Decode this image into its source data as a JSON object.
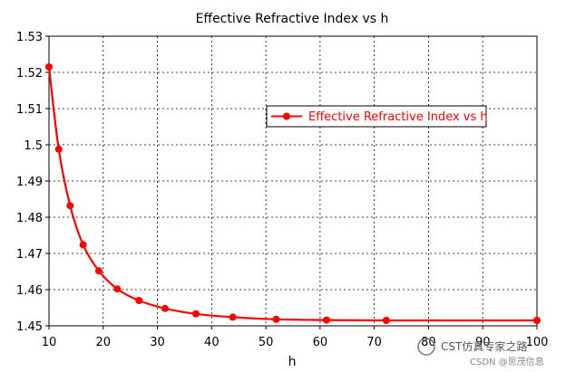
{
  "chart_data": {
    "type": "line",
    "title": "Effective Refractive Index vs h",
    "xlabel": "h",
    "ylabel": "",
    "xlim": [
      10,
      100
    ],
    "ylim": [
      1.45,
      1.53
    ],
    "xticks": [
      10,
      20,
      30,
      40,
      50,
      60,
      70,
      80,
      90,
      100
    ],
    "yticks": [
      1.45,
      1.46,
      1.47,
      1.48,
      1.49,
      1.5,
      1.51,
      1.52,
      1.53
    ],
    "grid": true,
    "legend_position": "top-right",
    "series": [
      {
        "name": "Effective Refractive Index vs h",
        "color": "#ff0000",
        "marker": "circle",
        "x": [
          10,
          11.8,
          13.9,
          16.3,
          19.2,
          22.6,
          26.6,
          31.4,
          37.1,
          43.9,
          51.9,
          61.2,
          72.2,
          100
        ],
        "y": [
          1.5215,
          1.4988,
          1.4832,
          1.4724,
          1.4652,
          1.4602,
          1.457,
          1.4548,
          1.4533,
          1.4524,
          1.4518,
          1.4516,
          1.4515,
          1.4515
        ]
      }
    ]
  },
  "watermark": {
    "main": "CST仿真专家之路",
    "sub": "CSDN @思茂信息"
  }
}
